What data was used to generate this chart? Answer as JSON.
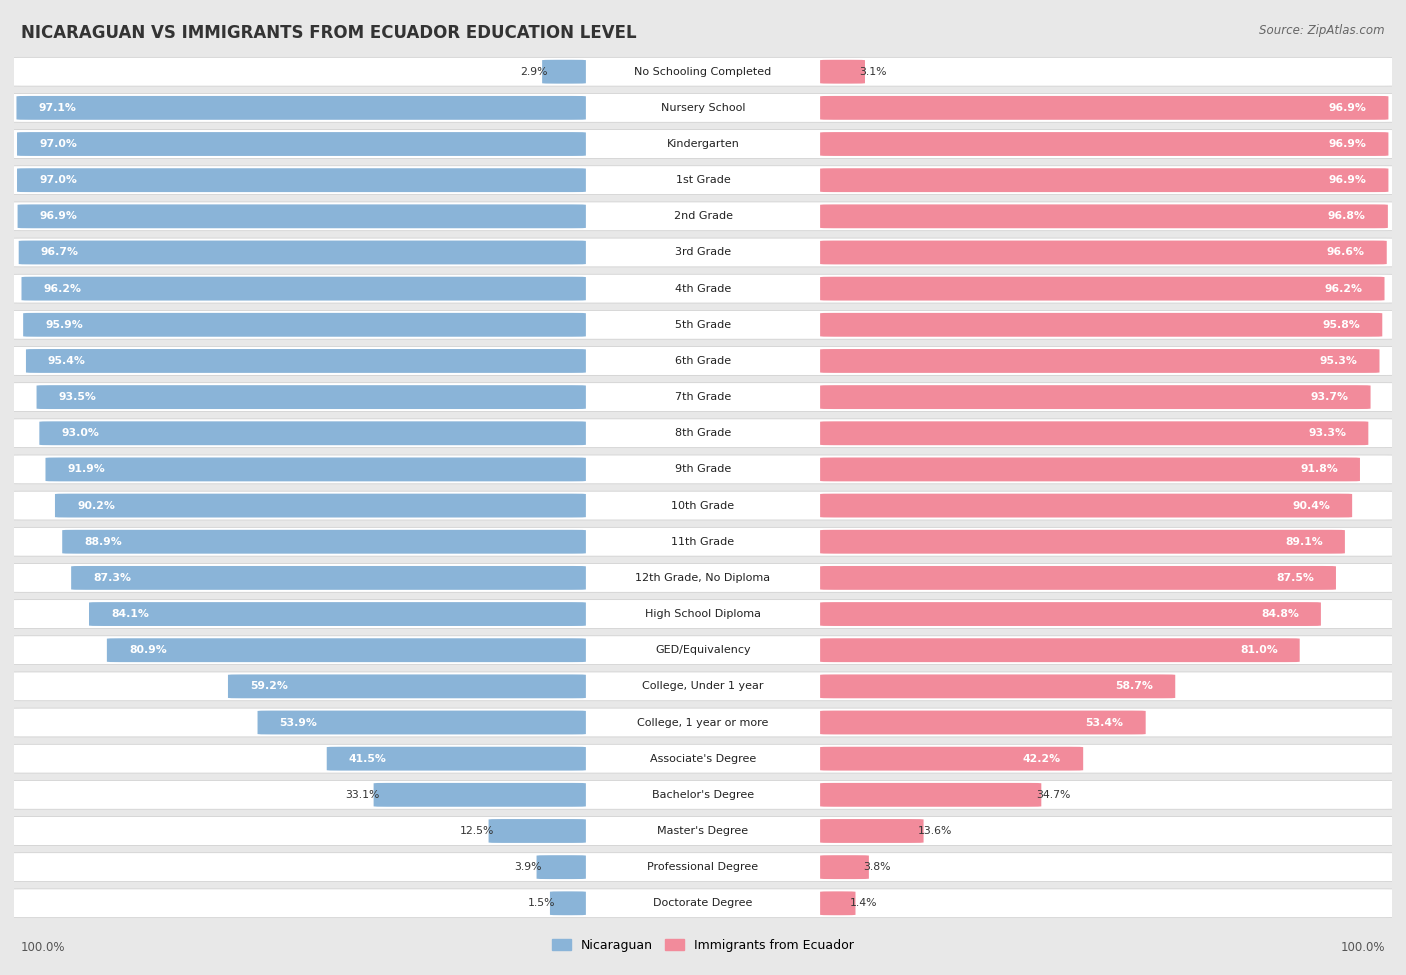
{
  "title": "NICARAGUAN VS IMMIGRANTS FROM ECUADOR EDUCATION LEVEL",
  "source": "Source: ZipAtlas.com",
  "categories": [
    "No Schooling Completed",
    "Nursery School",
    "Kindergarten",
    "1st Grade",
    "2nd Grade",
    "3rd Grade",
    "4th Grade",
    "5th Grade",
    "6th Grade",
    "7th Grade",
    "8th Grade",
    "9th Grade",
    "10th Grade",
    "11th Grade",
    "12th Grade, No Diploma",
    "High School Diploma",
    "GED/Equivalency",
    "College, Under 1 year",
    "College, 1 year or more",
    "Associate's Degree",
    "Bachelor's Degree",
    "Master's Degree",
    "Professional Degree",
    "Doctorate Degree"
  ],
  "nicaraguan": [
    2.9,
    97.1,
    97.0,
    97.0,
    96.9,
    96.7,
    96.2,
    95.9,
    95.4,
    93.5,
    93.0,
    91.9,
    90.2,
    88.9,
    87.3,
    84.1,
    80.9,
    59.2,
    53.9,
    41.5,
    33.1,
    12.5,
    3.9,
    1.5
  ],
  "ecuador": [
    3.1,
    96.9,
    96.9,
    96.9,
    96.8,
    96.6,
    96.2,
    95.8,
    95.3,
    93.7,
    93.3,
    91.8,
    90.4,
    89.1,
    87.5,
    84.8,
    81.0,
    58.7,
    53.4,
    42.2,
    34.7,
    13.6,
    3.8,
    1.4
  ],
  "blue_color": "#8ab4d8",
  "pink_color": "#f28b9b",
  "bg_color": "#e8e8e8",
  "row_bg": "#f5f5f5",
  "label_fontsize": 8.0,
  "value_fontsize": 7.8,
  "title_fontsize": 12,
  "max_value": 100.0
}
